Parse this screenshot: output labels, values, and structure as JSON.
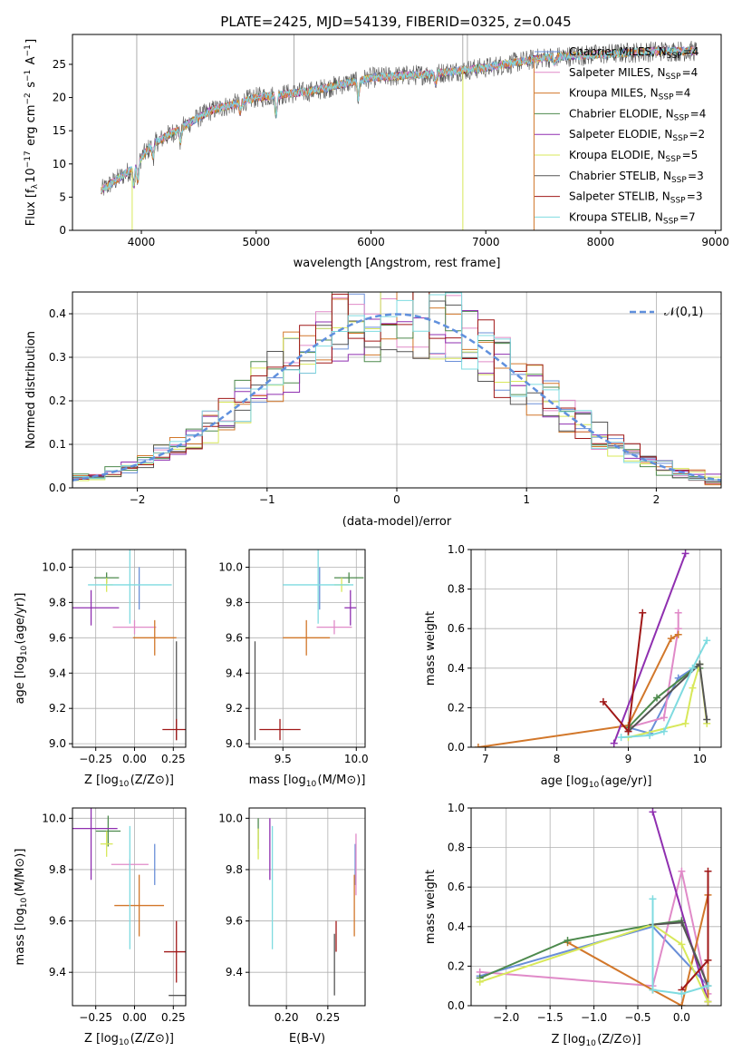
{
  "figure": {
    "title": "PLATE=2425, MJD=54139, FIBERID=0325, z=0.045"
  },
  "colors": {
    "Chabrier MILES": "#6a8fd8",
    "Salpeter MILES": "#e08ac8",
    "Kroupa MILES": "#d2772a",
    "Chabrier ELODIE": "#4d8a4d",
    "Salpeter ELODIE": "#8f2fb0",
    "Kroupa ELODIE": "#d8e85a",
    "Chabrier STELIB": "#555555",
    "Salpeter STELIB": "#a01818",
    "Kroupa STELIB": "#7fdbe0",
    "normal": "#6090dd"
  },
  "chart_data": [
    {
      "id": "spectrum",
      "type": "line",
      "xlabel": "wavelength [Angstrom, rest frame]",
      "ylabel": "Flux [f_λ10^-17 erg cm^-2 s^-1 A^-1]",
      "xlim": [
        3400,
        9050
      ],
      "ylim": [
        0,
        29.5
      ],
      "xticks": [
        4000,
        5000,
        6000,
        7000,
        8000,
        9000
      ],
      "yticks": [
        0,
        5,
        10,
        15,
        20,
        25
      ],
      "legend_position": "top-right",
      "legend": [
        "Chabrier MILES, N_SSP=4",
        "Salpeter MILES, N_SSP=4",
        "Kroupa MILES, N_SSP=4",
        "Chabrier ELODIE, N_SSP=4",
        "Salpeter ELODIE, N_SSP=2",
        "Kroupa ELODIE, N_SSP=5",
        "Chabrier STELIB, N_SSP=3",
        "Salpeter STELIB, N_SSP=3",
        "Kroupa STELIB, N_SSP=7"
      ],
      "continuum_knots": {
        "x": [
          3650,
          3900,
          4100,
          4300,
          4600,
          5000,
          5500,
          6000,
          6500,
          7000,
          7500,
          8000,
          8500,
          8800
        ],
        "y": [
          6,
          9,
          13,
          15,
          18,
          20,
          21,
          23,
          23.5,
          24.5,
          26,
          26.5,
          27,
          27
        ]
      }
    },
    {
      "id": "residuals",
      "type": "histogram",
      "xlabel": "(data-model)/error",
      "ylabel": "Normed distribution",
      "xlim": [
        -2.5,
        2.5
      ],
      "ylim": [
        0,
        0.45
      ],
      "xticks": [
        -2,
        -1,
        0,
        1,
        2
      ],
      "yticks": [
        0.0,
        0.1,
        0.2,
        0.3,
        0.4
      ],
      "bin_width": 0.125,
      "legend_position": "top-right",
      "normal_curve": {
        "label": "𝒩(0,1)",
        "mean": 0,
        "sigma": 1
      }
    },
    {
      "id": "age_vs_Z",
      "type": "errorbar",
      "xlabel": "Z [log10(Z/Z⊙)]",
      "ylabel": "age  [log10(age/yr)]",
      "xlim": [
        -0.4,
        0.33
      ],
      "ylim": [
        8.98,
        10.1
      ],
      "xticks": [
        -0.25,
        0.0,
        0.25
      ],
      "yticks": [
        9.0,
        9.2,
        9.4,
        9.6,
        9.8,
        10.0
      ],
      "points": [
        {
          "model": "Chabrier MILES",
          "x": 0.03,
          "xerr": 0.0,
          "y": 9.88,
          "yerr": 0.12
        },
        {
          "model": "Salpeter MILES",
          "x": 0.0,
          "xerr": 0.14,
          "y": 9.66,
          "yerr": 0.04
        },
        {
          "model": "Kroupa MILES",
          "x": 0.13,
          "xerr": 0.14,
          "y": 9.6,
          "yerr": 0.1
        },
        {
          "model": "Chabrier ELODIE",
          "x": -0.18,
          "xerr": 0.08,
          "y": 9.94,
          "yerr": 0.03
        },
        {
          "model": "Salpeter ELODIE",
          "x": -0.28,
          "xerr": 0.18,
          "y": 9.77,
          "yerr": 0.1
        },
        {
          "model": "Kroupa ELODIE",
          "x": -0.18,
          "xerr": 0.04,
          "y": 9.9,
          "yerr": 0.04
        },
        {
          "model": "Chabrier STELIB",
          "x": 0.27,
          "xerr": 0.0,
          "y": 9.3,
          "yerr": 0.28
        },
        {
          "model": "Salpeter STELIB",
          "x": 0.27,
          "xerr": 0.09,
          "y": 9.08,
          "yerr": 0.06
        },
        {
          "model": "Kroupa STELIB",
          "x": -0.03,
          "xerr": 0.27,
          "y": 9.9,
          "yerr": 0.22
        }
      ]
    },
    {
      "id": "age_vs_mass",
      "type": "errorbar",
      "xlabel": "mass [log10(M/M⊙)]",
      "ylabel": "",
      "xlim": [
        9.27,
        10.06
      ],
      "ylim": [
        8.98,
        10.1
      ],
      "xticks": [
        9.5,
        10.0
      ],
      "yticks": [
        9.0,
        9.2,
        9.4,
        9.6,
        9.8,
        10.0
      ],
      "points": [
        {
          "model": "Chabrier MILES",
          "x": 9.75,
          "xerr": 0.0,
          "y": 9.88,
          "yerr": 0.12
        },
        {
          "model": "Salpeter MILES",
          "x": 9.85,
          "xerr": 0.12,
          "y": 9.66,
          "yerr": 0.04
        },
        {
          "model": "Kroupa MILES",
          "x": 9.66,
          "xerr": 0.16,
          "y": 9.6,
          "yerr": 0.1
        },
        {
          "model": "Chabrier ELODIE",
          "x": 9.95,
          "xerr": 0.1,
          "y": 9.94,
          "yerr": 0.03
        },
        {
          "model": "Salpeter ELODIE",
          "x": 9.96,
          "xerr": 0.04,
          "y": 9.77,
          "yerr": 0.1
        },
        {
          "model": "Kroupa ELODIE",
          "x": 9.9,
          "xerr": 0.05,
          "y": 9.9,
          "yerr": 0.04
        },
        {
          "model": "Chabrier STELIB",
          "x": 9.31,
          "xerr": 0.0,
          "y": 9.3,
          "yerr": 0.28
        },
        {
          "model": "Salpeter STELIB",
          "x": 9.48,
          "xerr": 0.14,
          "y": 9.08,
          "yerr": 0.06
        },
        {
          "model": "Kroupa STELIB",
          "x": 9.74,
          "xerr": 0.24,
          "y": 9.9,
          "yerr": 0.22
        }
      ]
    },
    {
      "id": "mass_weight_vs_age",
      "type": "line",
      "xlabel": "age  [log10(age/yr)]",
      "ylabel": "mass weight",
      "xlim": [
        6.8,
        10.3
      ],
      "ylim": [
        0,
        1.0
      ],
      "xticks": [
        7,
        8,
        9,
        10
      ],
      "yticks": [
        0.0,
        0.2,
        0.4,
        0.6,
        0.8,
        1.0
      ],
      "series": [
        {
          "model": "Chabrier MILES",
          "x": [
            9.0,
            9.3,
            9.7,
            10.0
          ],
          "y": [
            0.1,
            0.07,
            0.35,
            0.42
          ]
        },
        {
          "model": "Salpeter MILES",
          "x": [
            9.0,
            9.5,
            9.7,
            9.7
          ],
          "y": [
            0.1,
            0.15,
            0.6,
            0.68
          ]
        },
        {
          "model": "Kroupa MILES",
          "x": [
            6.9,
            9.0,
            9.6,
            9.7
          ],
          "y": [
            0.0,
            0.11,
            0.55,
            0.57
          ]
        },
        {
          "model": "Chabrier ELODIE",
          "x": [
            9.0,
            9.4,
            10.0,
            10.0
          ],
          "y": [
            0.1,
            0.25,
            0.42,
            0.4
          ]
        },
        {
          "model": "Salpeter ELODIE",
          "x": [
            8.8,
            9.8
          ],
          "y": [
            0.02,
            0.98
          ]
        },
        {
          "model": "Kroupa ELODIE",
          "x": [
            9.0,
            9.8,
            9.9,
            10.0,
            10.1
          ],
          "y": [
            0.05,
            0.12,
            0.3,
            0.42,
            0.12
          ]
        },
        {
          "model": "Chabrier STELIB",
          "x": [
            9.0,
            10.0,
            10.1
          ],
          "y": [
            0.08,
            0.42,
            0.14
          ]
        },
        {
          "model": "Salpeter STELIB",
          "x": [
            8.65,
            9.0,
            9.2
          ],
          "y": [
            0.23,
            0.08,
            0.68
          ]
        },
        {
          "model": "Kroupa STELIB",
          "x": [
            8.9,
            9.3,
            9.5,
            9.9,
            10.1
          ],
          "y": [
            0.05,
            0.06,
            0.08,
            0.4,
            0.54
          ]
        }
      ]
    },
    {
      "id": "mass_vs_Z",
      "type": "errorbar",
      "xlabel": "Z [log10(Z/Z⊙)]",
      "ylabel": "mass [log10(M/M⊙)]",
      "xlim": [
        -0.4,
        0.33
      ],
      "ylim": [
        9.27,
        10.04
      ],
      "xticks": [
        -0.25,
        0.0,
        0.25
      ],
      "yticks": [
        9.4,
        9.6,
        9.8,
        10.0
      ],
      "points": [
        {
          "model": "Chabrier MILES",
          "x": 0.13,
          "xerr": 0.0,
          "y": 9.82,
          "yerr": 0.08
        },
        {
          "model": "Salpeter MILES",
          "x": -0.03,
          "xerr": 0.12,
          "y": 9.82,
          "yerr": 0.02
        },
        {
          "model": "Kroupa MILES",
          "x": 0.03,
          "xerr": 0.16,
          "y": 9.66,
          "yerr": 0.12
        },
        {
          "model": "Chabrier ELODIE",
          "x": -0.17,
          "xerr": 0.08,
          "y": 9.95,
          "yerr": 0.06
        },
        {
          "model": "Salpeter ELODIE",
          "x": -0.28,
          "xerr": 0.17,
          "y": 9.96,
          "yerr": 0.2
        },
        {
          "model": "Kroupa ELODIE",
          "x": -0.18,
          "xerr": 0.04,
          "y": 9.9,
          "yerr": 0.05
        },
        {
          "model": "Chabrier STELIB",
          "x": 0.29,
          "xerr": 0.07,
          "y": 9.31,
          "yerr": 0.0
        },
        {
          "model": "Salpeter STELIB",
          "x": 0.27,
          "xerr": 0.08,
          "y": 9.48,
          "yerr": 0.12
        },
        {
          "model": "Kroupa STELIB",
          "x": -0.03,
          "xerr": 0.0,
          "y": 9.73,
          "yerr": 0.24
        }
      ]
    },
    {
      "id": "mass_vs_ebv",
      "type": "errorbar",
      "xlabel": "E(B-V)",
      "ylabel": "",
      "xlim": [
        0.155,
        0.295
      ],
      "ylim": [
        9.27,
        10.04
      ],
      "xticks": [
        0.2,
        0.25
      ],
      "yticks": [
        9.4,
        9.6,
        9.8,
        10.0
      ],
      "points": [
        {
          "model": "Chabrier MILES",
          "x": 0.283,
          "xerr": 0.0,
          "y": 9.82,
          "yerr": 0.08
        },
        {
          "model": "Salpeter MILES",
          "x": 0.284,
          "xerr": 0.0,
          "y": 9.82,
          "yerr": 0.12
        },
        {
          "model": "Kroupa MILES",
          "x": 0.282,
          "xerr": 0.0,
          "y": 9.66,
          "yerr": 0.12
        },
        {
          "model": "Chabrier ELODIE",
          "x": 0.166,
          "xerr": 0.0,
          "y": 9.94,
          "yerr": 0.06
        },
        {
          "model": "Salpeter ELODIE",
          "x": 0.18,
          "xerr": 0.0,
          "y": 9.88,
          "yerr": 0.12
        },
        {
          "model": "Kroupa ELODIE",
          "x": 0.166,
          "xerr": 0.0,
          "y": 9.9,
          "yerr": 0.06
        },
        {
          "model": "Chabrier STELIB",
          "x": 0.258,
          "xerr": 0.0,
          "y": 9.43,
          "yerr": 0.12
        },
        {
          "model": "Salpeter STELIB",
          "x": 0.26,
          "xerr": 0.0,
          "y": 9.54,
          "yerr": 0.06
        },
        {
          "model": "Kroupa STELIB",
          "x": 0.183,
          "xerr": 0.0,
          "y": 9.73,
          "yerr": 0.24
        }
      ]
    },
    {
      "id": "mass_weight_vs_Z",
      "type": "line",
      "xlabel": "Z [log10(Z/Z⊙)]",
      "ylabel": "mass weight",
      "xlim": [
        -2.4,
        0.45
      ],
      "ylim": [
        0,
        1.0
      ],
      "xticks": [
        -2.0,
        -1.5,
        -1.0,
        -0.5,
        0.0
      ],
      "yticks": [
        0.0,
        0.2,
        0.4,
        0.6,
        0.8,
        1.0
      ],
      "series": [
        {
          "model": "Chabrier MILES",
          "x": [
            -2.3,
            -0.33,
            0.3,
            0.3
          ],
          "y": [
            0.15,
            0.4,
            0.1,
            0.02
          ]
        },
        {
          "model": "Salpeter MILES",
          "x": [
            -2.3,
            -0.33,
            0.0,
            0.3,
            0.3
          ],
          "y": [
            0.17,
            0.1,
            0.68,
            0.06,
            0.02
          ]
        },
        {
          "model": "Kroupa MILES",
          "x": [
            -1.3,
            -0.33,
            0.0,
            0.3,
            0.3
          ],
          "y": [
            0.32,
            0.08,
            0.0,
            0.56,
            0.02
          ]
        },
        {
          "model": "Chabrier ELODIE",
          "x": [
            -2.3,
            -1.3,
            -0.33,
            0.0,
            0.3
          ],
          "y": [
            0.14,
            0.33,
            0.41,
            0.43,
            0.1
          ]
        },
        {
          "model": "Salpeter ELODIE",
          "x": [
            -0.33,
            0.3
          ],
          "y": [
            0.98,
            0.02
          ]
        },
        {
          "model": "Kroupa ELODIE",
          "x": [
            -2.3,
            -0.33,
            0.0,
            0.3
          ],
          "y": [
            0.12,
            0.41,
            0.31,
            0.02
          ]
        },
        {
          "model": "Chabrier STELIB",
          "x": [
            -0.33,
            0.0,
            0.3
          ],
          "y": [
            0.41,
            0.42,
            0.1
          ]
        },
        {
          "model": "Salpeter STELIB",
          "x": [
            0.0,
            0.3,
            0.3
          ],
          "y": [
            0.08,
            0.23,
            0.68
          ]
        },
        {
          "model": "Kroupa STELIB",
          "x": [
            -0.33,
            -0.33,
            0.0,
            0.3
          ],
          "y": [
            0.54,
            0.08,
            0.06,
            0.1
          ]
        }
      ]
    }
  ]
}
